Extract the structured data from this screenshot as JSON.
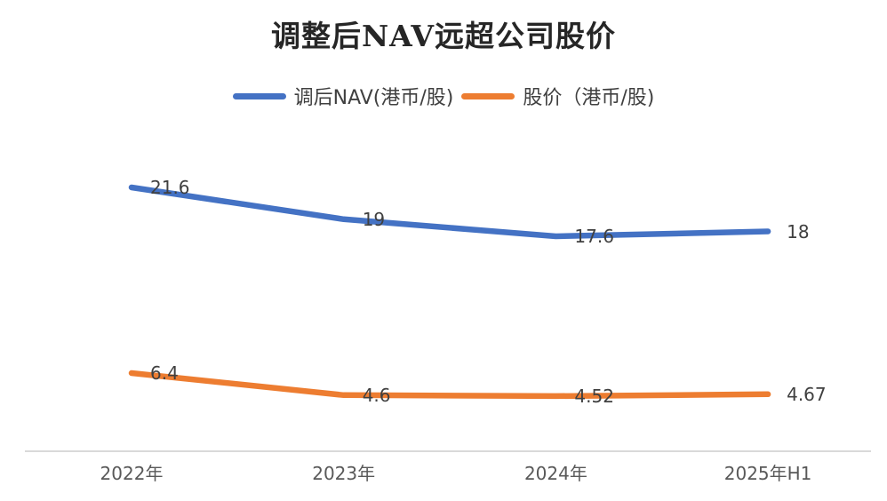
{
  "chart_data": {
    "type": "line",
    "title": "调整后NAV远超公司股价",
    "categories": [
      "2022年",
      "2023年",
      "2024年",
      "2025年H1"
    ],
    "series": [
      {
        "name": "调后NAV(港币/股)",
        "color": "#4472C4",
        "values": [
          21.6,
          19,
          17.6,
          18
        ],
        "labels": [
          "21.6",
          "19",
          "17.6",
          "18"
        ]
      },
      {
        "name": "股价（港币/股)",
        "color": "#ED7D31",
        "values": [
          6.4,
          4.6,
          4.52,
          4.67
        ],
        "labels": [
          "6.4",
          "4.6",
          "4.52",
          "4.67"
        ]
      }
    ],
    "xlabel": "",
    "ylabel": "",
    "ylim": [
      0,
      26
    ],
    "grid": false,
    "legend_position": "top-center",
    "data_labels": true,
    "y_axis_visible": false,
    "x_axis_line_color": "#D9D9D9"
  }
}
